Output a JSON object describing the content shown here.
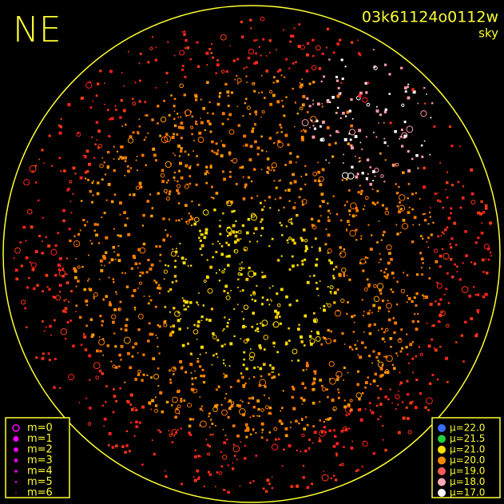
{
  "header": {
    "corner_label": "NE",
    "frame_id": "03k61124o0112w",
    "field": "sky"
  },
  "legend_m": {
    "items": [
      "m=0",
      "m=1",
      "m=2",
      "m=3",
      "m=4",
      "m=5",
      "m=6"
    ],
    "color": "#ff00ff"
  },
  "legend_mu": {
    "items": [
      {
        "label": "μ=22.0",
        "color": "#3a6cff"
      },
      {
        "label": "μ=21.5",
        "color": "#22d040"
      },
      {
        "label": "μ=21.0",
        "color": "#ffe000"
      },
      {
        "label": "μ=20.0",
        "color": "#ff8a00"
      },
      {
        "label": "μ=19.0",
        "color": "#ff5a5a"
      },
      {
        "label": "μ=18.0",
        "color": "#ffaab8"
      },
      {
        "label": "μ=17.0",
        "color": "#ffffff"
      }
    ]
  }
}
